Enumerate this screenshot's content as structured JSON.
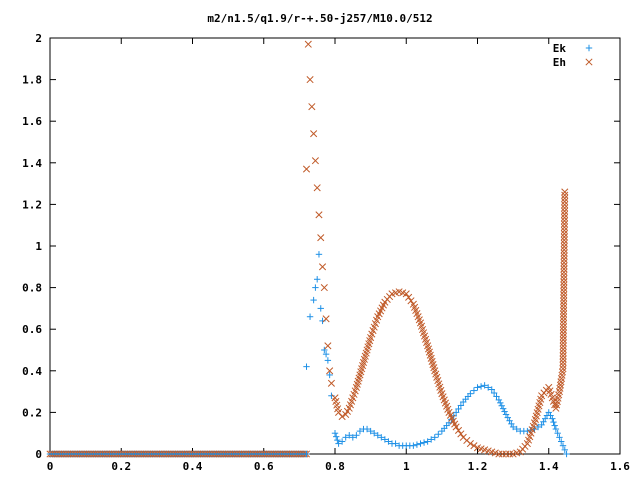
{
  "chart_data": {
    "type": "scatter",
    "title": "m2/n1.5/q1.9/r-+.50-j257/M10.0/512",
    "xlabel": "",
    "ylabel": "",
    "xlim": [
      0,
      1.6
    ],
    "ylim": [
      0,
      2
    ],
    "x_ticks": [
      "0",
      "0.2",
      "0.4",
      "0.6",
      "0.8",
      "1",
      "1.2",
      "1.4",
      "1.6"
    ],
    "y_ticks": [
      "0",
      "0.2",
      "0.4",
      "0.6",
      "0.8",
      "1",
      "1.2",
      "1.4",
      "1.6",
      "1.8",
      "2"
    ],
    "legend_position": "top-right",
    "series": [
      {
        "name": "Ek",
        "marker": "+",
        "color": "#1e90e6",
        "x": [
          0.72,
          0.73,
          0.74,
          0.745,
          0.75,
          0.755,
          0.76,
          0.765,
          0.77,
          0.775,
          0.78,
          0.785,
          0.79,
          0.8,
          0.81,
          0.82,
          0.83,
          0.84,
          0.85,
          0.86,
          0.87,
          0.88,
          0.89,
          0.9,
          0.91,
          0.92,
          0.93,
          0.94,
          0.95,
          0.96,
          0.97,
          0.98,
          0.99,
          1.0,
          1.02,
          1.04,
          1.06,
          1.08,
          1.1,
          1.12,
          1.14,
          1.16,
          1.18,
          1.2,
          1.22,
          1.24,
          1.26,
          1.28,
          1.3,
          1.32,
          1.34,
          1.36,
          1.38,
          1.39,
          1.4,
          1.41,
          1.42,
          1.43,
          1.44,
          1.45
        ],
        "y": [
          0.42,
          0.66,
          0.74,
          0.8,
          0.84,
          0.96,
          0.7,
          0.64,
          0.5,
          0.48,
          0.45,
          0.38,
          0.28,
          0.1,
          0.05,
          0.06,
          0.08,
          0.09,
          0.08,
          0.09,
          0.11,
          0.12,
          0.12,
          0.11,
          0.1,
          0.09,
          0.08,
          0.07,
          0.06,
          0.05,
          0.05,
          0.04,
          0.04,
          0.04,
          0.04,
          0.05,
          0.06,
          0.08,
          0.11,
          0.15,
          0.2,
          0.25,
          0.29,
          0.32,
          0.33,
          0.31,
          0.26,
          0.19,
          0.13,
          0.11,
          0.11,
          0.12,
          0.14,
          0.17,
          0.2,
          0.17,
          0.12,
          0.08,
          0.04,
          0.0
        ]
      },
      {
        "name": "Eh",
        "marker": "x",
        "color": "#c05a28",
        "x": [
          0.72,
          0.725,
          0.73,
          0.735,
          0.74,
          0.745,
          0.75,
          0.755,
          0.76,
          0.765,
          0.77,
          0.775,
          0.78,
          0.785,
          0.79,
          0.8,
          0.81,
          0.82,
          0.83,
          0.84,
          0.86,
          0.88,
          0.9,
          0.92,
          0.94,
          0.96,
          0.98,
          1.0,
          1.02,
          1.04,
          1.06,
          1.08,
          1.1,
          1.12,
          1.14,
          1.16,
          1.18,
          1.2,
          1.22,
          1.24,
          1.26,
          1.28,
          1.3,
          1.32,
          1.34,
          1.36,
          1.38,
          1.4,
          1.42,
          1.43,
          1.44,
          1.445
        ],
        "y": [
          1.37,
          1.97,
          1.8,
          1.67,
          1.54,
          1.41,
          1.28,
          1.15,
          1.04,
          0.9,
          0.8,
          0.65,
          0.52,
          0.4,
          0.34,
          0.27,
          0.2,
          0.18,
          0.19,
          0.22,
          0.32,
          0.44,
          0.56,
          0.66,
          0.73,
          0.77,
          0.78,
          0.77,
          0.72,
          0.63,
          0.52,
          0.4,
          0.29,
          0.2,
          0.13,
          0.08,
          0.05,
          0.03,
          0.02,
          0.01,
          0.0,
          0.0,
          0.0,
          0.01,
          0.05,
          0.15,
          0.28,
          0.32,
          0.22,
          0.3,
          0.41,
          1.26
        ]
      }
    ],
    "baseline": {
      "x_from": 0,
      "x_to": 0.72,
      "y": 0
    }
  }
}
